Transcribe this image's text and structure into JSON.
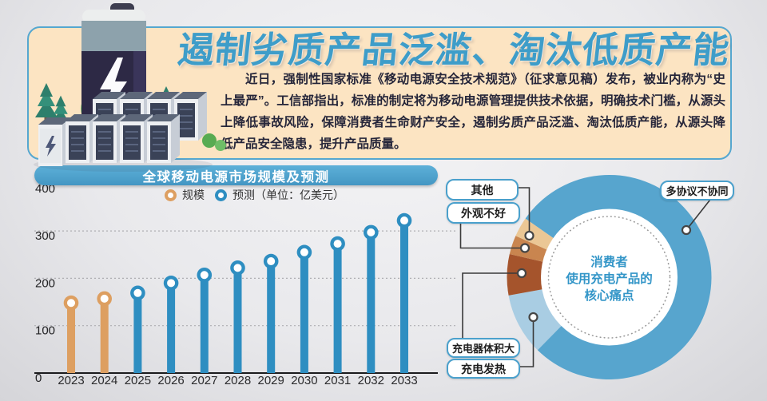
{
  "colors": {
    "accent_blue": "#4AA0CC",
    "panel_bg": "#FCE4C2",
    "banner_bg": "#4B9FC9",
    "title_blue": "#3E9DC9",
    "text_dark": "#26263A",
    "bar_scale_orange": "#DD9F61",
    "bar_forecast_blue": "#2E8EC1"
  },
  "header": {
    "title": "遏制劣质产品泛滥、淘汰低质产能",
    "paragraph": "近日，强制性国家标准《移动电源安全技术规范》（征求意见稿）发布，被业内称为“史上最严”。工信部指出，标准的制定将为移动电源管理提供技术依据，明确技术门槛，从源头上降低事故风险，保障消费者生命财产安全，遏制劣质产品泛滥、淘汰低质产能，从源头降低产品安全隐患，提升产品质量。"
  },
  "chart_data": [
    {
      "type": "bar",
      "title": "全球移动电源市场规模及预测",
      "unit_note": "（单位：亿美元）",
      "legend": [
        {
          "label": "规模",
          "color": "#DD9F61"
        },
        {
          "label": "预测（单位：亿美元）",
          "color": "#2E8EC1"
        }
      ],
      "categories": [
        "2023",
        "2024",
        "2025",
        "2026",
        "2027",
        "2028",
        "2029",
        "2030",
        "2031",
        "2032",
        "2033"
      ],
      "series": [
        {
          "name": "规模",
          "color": "#DD9F61",
          "x": [
            "2023",
            "2024"
          ],
          "values": [
            148,
            157
          ]
        },
        {
          "name": "预测",
          "color": "#2E8EC1",
          "x": [
            "2025",
            "2026",
            "2027",
            "2028",
            "2029",
            "2030",
            "2031",
            "2032",
            "2033"
          ],
          "values": [
            169,
            190,
            207,
            222,
            236,
            255,
            273,
            297,
            322
          ]
        }
      ],
      "y_ticks": [
        400,
        300,
        200,
        100,
        0
      ],
      "gridlines": [
        300,
        200,
        100
      ],
      "ylim": [
        0,
        400
      ],
      "legend_position": "top",
      "grid": "dotted"
    },
    {
      "type": "pie",
      "subtype": "donut",
      "center_label": [
        "消费者",
        "使用充电产品的",
        "核心痛点"
      ],
      "angle_convention": "degrees clockwise from 12 o'clock",
      "segments": [
        {
          "label": "多协议不协同",
          "color": "#57A5CE",
          "start_deg": 305,
          "end_deg": 584.5,
          "span_deg": 279.5
        },
        {
          "label": "充电发热",
          "color": "#A9CDE3",
          "start_deg": 224.5,
          "end_deg": 259.7,
          "span_deg": 35.2
        },
        {
          "label": "充电器体积大",
          "color": "#A5542C",
          "start_deg": 259.7,
          "end_deg": 283.1,
          "span_deg": 23.4
        },
        {
          "label": "外观不好",
          "color": "#C9854F",
          "start_deg": 283.1,
          "end_deg": 293.8,
          "span_deg": 10.7
        },
        {
          "label": "其他",
          "color": "#EBC795",
          "start_deg": 293.8,
          "end_deg": 305,
          "span_deg": 11.2
        }
      ],
      "callouts": [
        {
          "label": "其他"
        },
        {
          "label": "外观不好"
        },
        {
          "label": "多协议不协同"
        },
        {
          "label": "充电器体积大"
        },
        {
          "label": "充电发热"
        }
      ]
    }
  ]
}
